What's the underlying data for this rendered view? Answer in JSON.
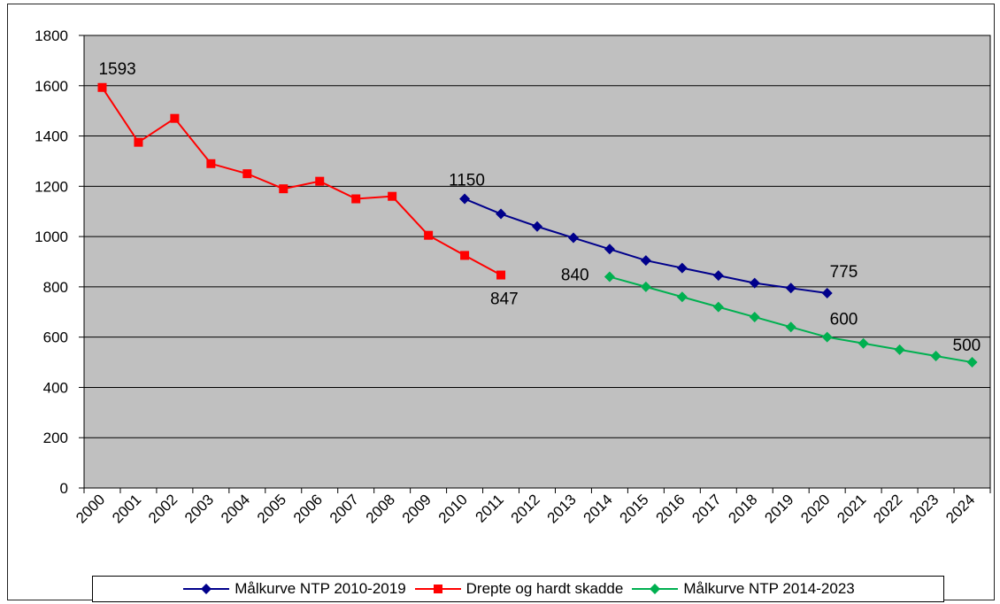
{
  "chart_data": {
    "type": "line",
    "categories": [
      "2000",
      "2001",
      "2002",
      "2003",
      "2004",
      "2005",
      "2006",
      "2007",
      "2008",
      "2009",
      "2010",
      "2011",
      "2012",
      "2013",
      "2014",
      "2015",
      "2016",
      "2017",
      "2018",
      "2019",
      "2020",
      "2021",
      "2022",
      "2023",
      "2024"
    ],
    "ylim": [
      0,
      1800
    ],
    "yticks": [
      0,
      200,
      400,
      600,
      800,
      1000,
      1200,
      1400,
      1600,
      1800
    ],
    "grid": true,
    "legend_position": "bottom",
    "series": [
      {
        "name": "Målkurve NTP 2010-2019",
        "color": "#00008B",
        "marker": "diamond",
        "x": [
          "2010",
          "2011",
          "2012",
          "2013",
          "2014",
          "2015",
          "2016",
          "2017",
          "2018",
          "2019",
          "2020"
        ],
        "values": [
          1150,
          1090,
          1040,
          995,
          950,
          905,
          875,
          845,
          815,
          795,
          775
        ]
      },
      {
        "name": "Drepte og hardt skadde",
        "color": "#FF0000",
        "marker": "square",
        "x": [
          "2000",
          "2001",
          "2002",
          "2003",
          "2004",
          "2005",
          "2006",
          "2007",
          "2008",
          "2009",
          "2010",
          "2011"
        ],
        "values": [
          1593,
          1375,
          1470,
          1290,
          1250,
          1190,
          1220,
          1150,
          1160,
          1005,
          925,
          847
        ]
      },
      {
        "name": "Målkurve NTP 2014-2023",
        "color": "#00B050",
        "marker": "diamond",
        "x": [
          "2014",
          "2015",
          "2016",
          "2017",
          "2018",
          "2019",
          "2020",
          "2021",
          "2022",
          "2023",
          "2024"
        ],
        "values": [
          840,
          800,
          760,
          720,
          680,
          640,
          600,
          575,
          550,
          525,
          500
        ]
      }
    ],
    "annotations": [
      {
        "text": "1593"
      },
      {
        "text": "1150"
      },
      {
        "text": "847"
      },
      {
        "text": "840"
      },
      {
        "text": "775"
      },
      {
        "text": "600"
      },
      {
        "text": "500"
      }
    ]
  }
}
